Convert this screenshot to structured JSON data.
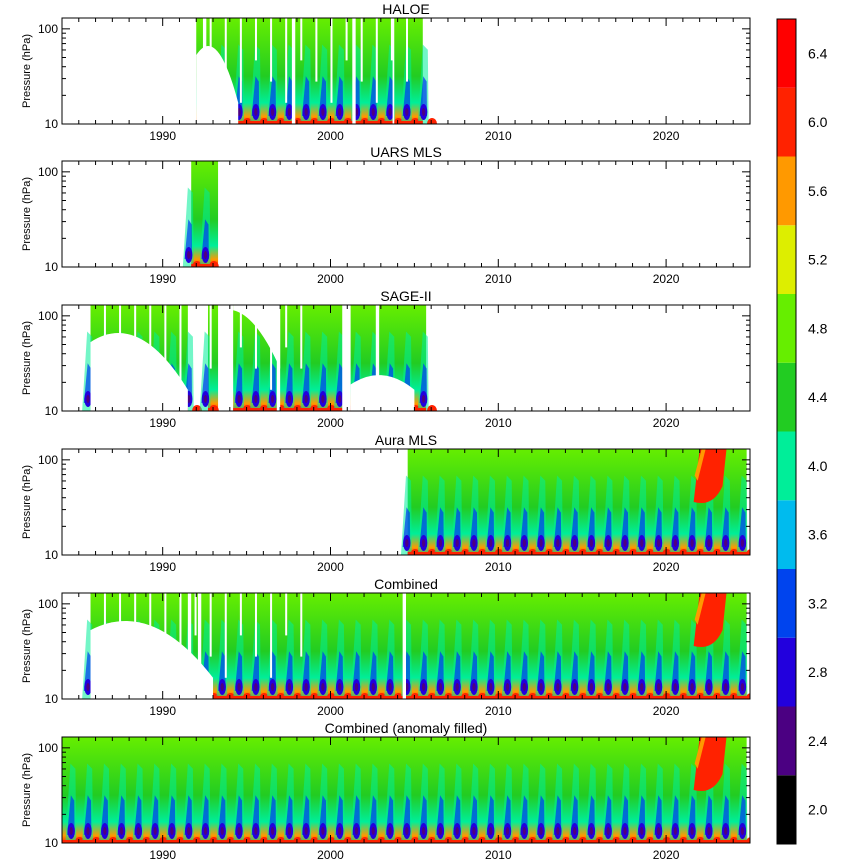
{
  "chart_data": [
    {
      "type": "heatmap",
      "title": "HALOE",
      "ylabel": "Pressure (hPa)",
      "yticks": [
        "10",
        "100"
      ],
      "xticks": [
        "1990",
        "2000",
        "2010",
        "2020"
      ],
      "ylim_hPa": [
        130,
        10
      ],
      "xlim_year": [
        1984,
        2025
      ],
      "y_scale": "log",
      "coverage": [
        [
          1992.0,
          2005.5
        ]
      ],
      "gaps": [
        [
          1992.4,
          1992.6
        ],
        [
          1997.7,
          1997.9
        ],
        [
          2001.3,
          2001.5
        ],
        [
          2003.7,
          2003.8
        ]
      ],
      "has_top_gaps": true,
      "has_high_polar": false,
      "white_top_fraction": 0.2
    },
    {
      "type": "heatmap",
      "title": "UARS MLS",
      "ylabel": "Pressure (hPa)",
      "yticks": [
        "10",
        "100"
      ],
      "xticks": [
        "1990",
        "2000",
        "2010",
        "2020"
      ],
      "ylim_hPa": [
        130,
        10
      ],
      "xlim_year": [
        1984,
        2025
      ],
      "y_scale": "log",
      "coverage": [
        [
          1991.7,
          1993.3
        ]
      ],
      "gaps": [],
      "has_top_gaps": false,
      "has_high_polar": false,
      "white_top_fraction": 0
    },
    {
      "type": "heatmap",
      "title": "SAGE-II",
      "ylabel": "Pressure (hPa)",
      "yticks": [
        "10",
        "100"
      ],
      "xticks": [
        "1990",
        "2000",
        "2010",
        "2020"
      ],
      "ylim_hPa": [
        130,
        10
      ],
      "xlim_year": [
        1984,
        2025
      ],
      "y_scale": "log",
      "coverage": [
        [
          1985.7,
          1991.5
        ],
        [
          1992.7,
          1993.3
        ],
        [
          1994.2,
          2005.7
        ]
      ],
      "gaps": [
        [
          1996.8,
          1997.0
        ],
        [
          2000.7,
          2001.2
        ],
        [
          2002.7,
          2002.9
        ]
      ],
      "has_top_gaps": true,
      "has_high_polar": false,
      "white_top_fraction": 0.55
    },
    {
      "type": "heatmap",
      "title": "Aura MLS",
      "ylabel": "Pressure (hPa)",
      "yticks": [
        "10",
        "100"
      ],
      "xticks": [
        "1990",
        "2000",
        "2010",
        "2020"
      ],
      "ylim_hPa": [
        130,
        10
      ],
      "xlim_year": [
        1984,
        2025
      ],
      "y_scale": "log",
      "coverage": [
        [
          2004.6,
          2024.8
        ]
      ],
      "gaps": [],
      "has_top_gaps": false,
      "has_high_polar": true,
      "white_top_fraction": 0
    },
    {
      "type": "heatmap",
      "title": "Combined",
      "ylabel": "Pressure (hPa)",
      "yticks": [
        "10",
        "100"
      ],
      "xticks": [
        "1990",
        "2000",
        "2010",
        "2020"
      ],
      "ylim_hPa": [
        130,
        10
      ],
      "xlim_year": [
        1984,
        2025
      ],
      "y_scale": "log",
      "coverage": [
        [
          1985.7,
          2024.8
        ]
      ],
      "gaps": [
        [
          1991.5,
          1991.7
        ],
        [
          1992.1,
          1992.3
        ],
        [
          2004.3,
          2004.5
        ]
      ],
      "has_top_gaps": true,
      "has_high_polar": true,
      "white_top_fraction": 0.45
    },
    {
      "type": "heatmap",
      "title": "Combined (anomaly filled)",
      "ylabel": "Pressure (hPa)",
      "yticks": [
        "10",
        "100"
      ],
      "xticks": [
        "1990",
        "2000",
        "2010",
        "2020"
      ],
      "ylim_hPa": [
        130,
        10
      ],
      "xlim_year": [
        1984,
        2025
      ],
      "y_scale": "log",
      "coverage": [
        [
          1984.0,
          2024.8
        ]
      ],
      "gaps": [],
      "has_top_gaps": false,
      "has_high_polar": true,
      "white_top_fraction": 0
    }
  ],
  "colorbar": {
    "levels": [
      "2.0",
      "2.4",
      "2.8",
      "3.2",
      "3.6",
      "4.0",
      "4.4",
      "4.8",
      "5.2",
      "5.6",
      "6.0",
      "6.4"
    ],
    "colors": [
      "#000000",
      "#4b0082",
      "#2200dd",
      "#0044ee",
      "#00bbee",
      "#00ee99",
      "#22cc22",
      "#66ee00",
      "#ddee00",
      "#ff9900",
      "#ff2200",
      "#ff0000"
    ]
  }
}
